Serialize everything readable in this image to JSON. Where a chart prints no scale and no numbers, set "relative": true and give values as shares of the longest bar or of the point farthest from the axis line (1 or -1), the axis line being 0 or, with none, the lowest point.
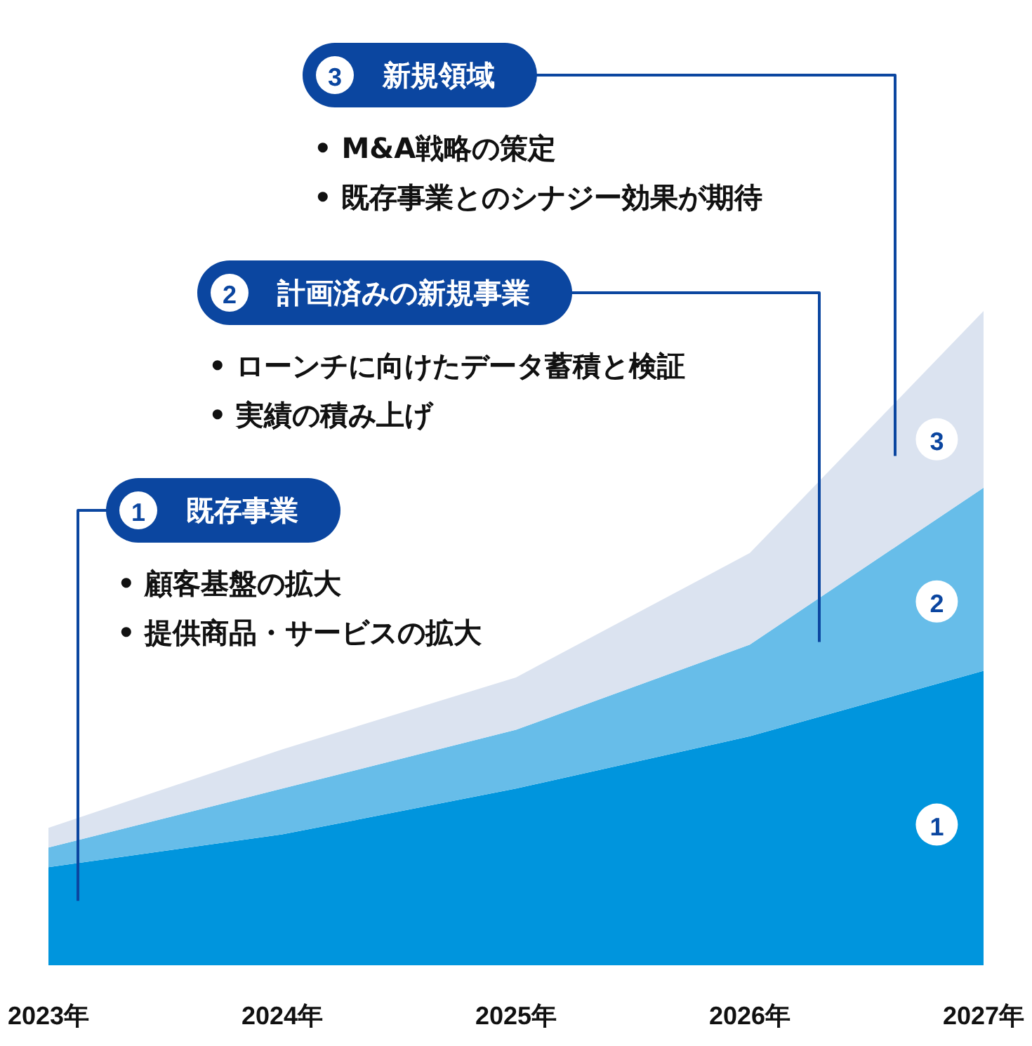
{
  "chart_data": {
    "type": "area",
    "stacked": true,
    "relative": true,
    "x": [
      2023,
      2024,
      2025,
      2026,
      2027
    ],
    "xlim": [
      2023,
      2027
    ],
    "xticks": [
      {
        "value": 2023,
        "label": "2023年"
      },
      {
        "value": 2024,
        "label": "2024年"
      },
      {
        "value": 2025,
        "label": "2025年"
      },
      {
        "value": 2026,
        "label": "2026年"
      },
      {
        "value": 2027,
        "label": "2027年"
      }
    ],
    "series": [
      {
        "name": "1",
        "color": "#0095dd",
        "values": [
          0.15,
          0.2,
          0.27,
          0.35,
          0.45
        ]
      },
      {
        "name": "2",
        "color": "#67bde9",
        "values": [
          0.03,
          0.07,
          0.09,
          0.14,
          0.28
        ]
      },
      {
        "name": "3",
        "color": "#dbe3f0",
        "values": [
          0.03,
          0.06,
          0.08,
          0.14,
          0.27
        ]
      }
    ],
    "annotations": [
      "既存事業",
      "• 顧客基盤の拡大",
      "• 提供商品・サービスの拡大",
      "計画済みの新規事業",
      "• ローンチに向けたデータ蓄積と検証",
      "• 実績の積み上げ",
      "新規領域",
      "• M&A戦略の策定",
      "• 既存事業とのシナジー効果が期待"
    ]
  }
}
